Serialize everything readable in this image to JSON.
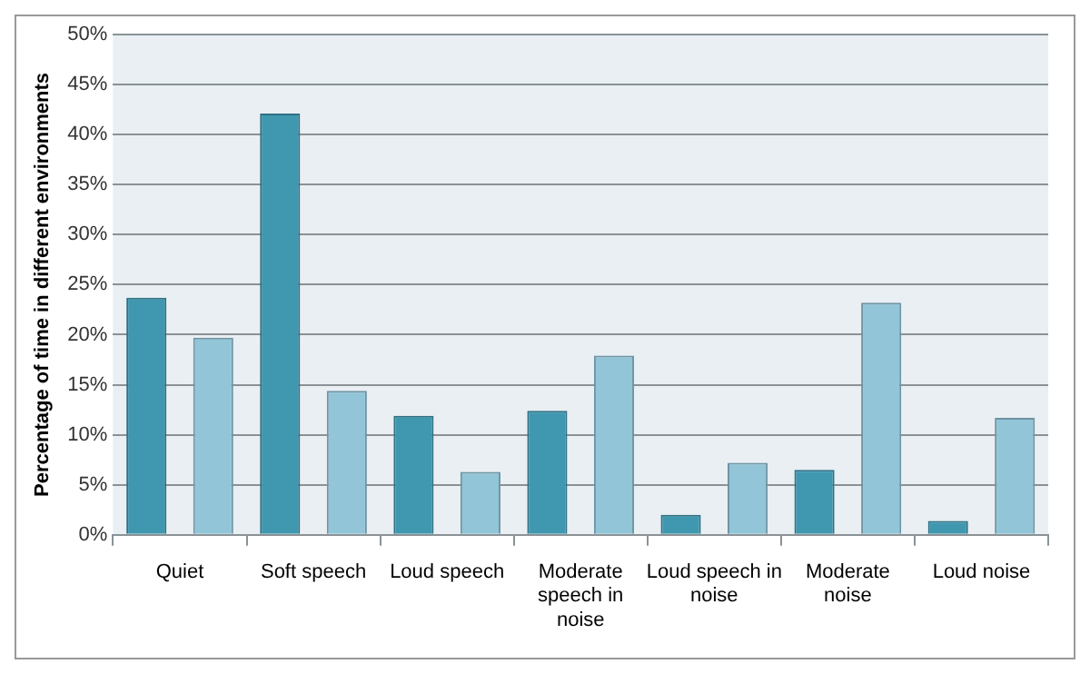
{
  "chart_data": {
    "type": "bar",
    "ylabel": "Percentage of time in different environments",
    "categories": [
      "Quiet",
      "Soft speech",
      "Loud speech",
      "Moderate speech in noise",
      "Loud speech in noise",
      "Moderate noise",
      "Loud noise"
    ],
    "series": [
      {
        "color": "#3f98b0",
        "values": [
          23.7,
          42.1,
          11.9,
          12.4,
          2.0,
          6.5,
          1.4
        ]
      },
      {
        "color": "#92c5d8",
        "values": [
          19.7,
          14.4,
          6.3,
          17.9,
          7.2,
          23.2,
          11.7
        ]
      }
    ],
    "ylim": [
      0,
      50
    ],
    "yticks": [
      {
        "value": 0,
        "label": "0%"
      },
      {
        "value": 5,
        "label": "5%"
      },
      {
        "value": 10,
        "label": "10%"
      },
      {
        "value": 15,
        "label": "15%"
      },
      {
        "value": 20,
        "label": "20%"
      },
      {
        "value": 25,
        "label": "25%"
      },
      {
        "value": 30,
        "label": "30%"
      },
      {
        "value": 35,
        "label": "35%"
      },
      {
        "value": 40,
        "label": "40%"
      },
      {
        "value": 45,
        "label": "45%"
      },
      {
        "value": 50,
        "label": "50%"
      }
    ],
    "grid": "y",
    "legend": false
  }
}
